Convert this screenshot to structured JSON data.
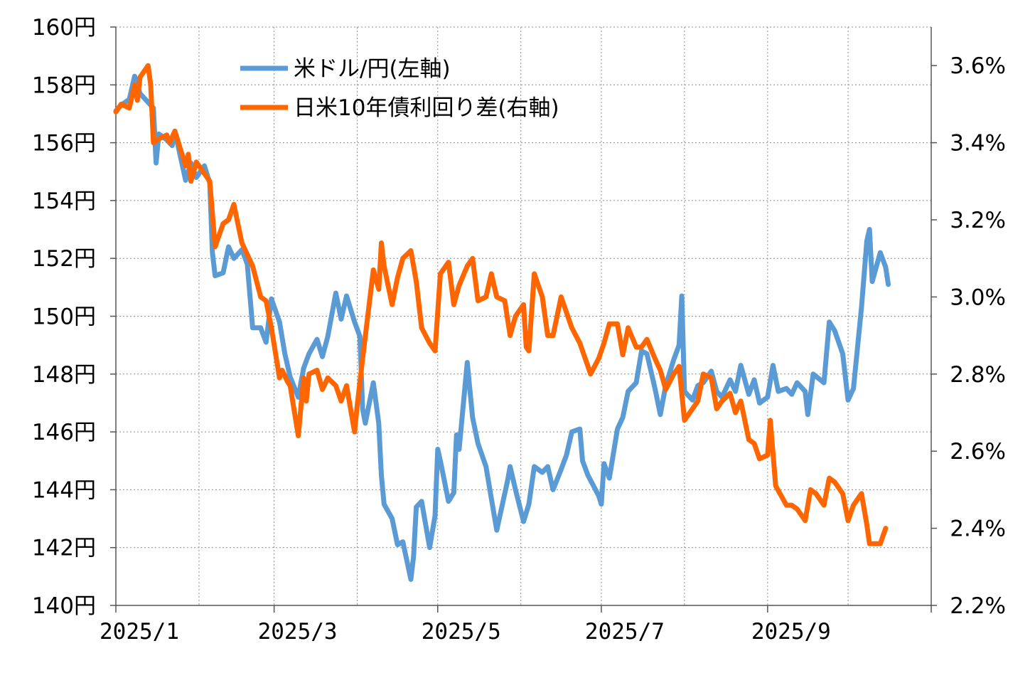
{
  "chart_data": {
    "type": "line",
    "title": "",
    "xlabel": "",
    "ylabel_left": "",
    "ylabel_right": "",
    "x_ticks": [
      "2025/1",
      "2025/3",
      "2025/5",
      "2025/7",
      "2025/9"
    ],
    "x_range": [
      "2025-01-01",
      "2025-11-01"
    ],
    "y_left": {
      "min": 140,
      "max": 160,
      "step": 2,
      "unit": "円",
      "ticks": [
        "140円",
        "142円",
        "144円",
        "146円",
        "148円",
        "150円",
        "152円",
        "154円",
        "156円",
        "158円",
        "160円"
      ]
    },
    "y_right": {
      "min": 2.2,
      "max": 3.7,
      "step": 0.2,
      "unit": "%",
      "ticks": [
        "2.2%",
        "2.4%",
        "2.6%",
        "2.8%",
        "3.0%",
        "3.2%",
        "3.4%",
        "3.6%"
      ]
    },
    "grid": true,
    "legend_position": "top-left",
    "series": [
      {
        "name": "米ドル/円(左軸)",
        "axis": "left",
        "color": "#5b9bd5",
        "points": [
          [
            "2025-01-01",
            157.1
          ],
          [
            "2025-01-03",
            157.3
          ],
          [
            "2025-01-06",
            157.5
          ],
          [
            "2025-01-08",
            158.3
          ],
          [
            "2025-01-10",
            157.7
          ],
          [
            "2025-01-13",
            157.4
          ],
          [
            "2025-01-15",
            157.2
          ],
          [
            "2025-01-16",
            155.3
          ],
          [
            "2025-01-17",
            156.3
          ],
          [
            "2025-01-20",
            156.1
          ],
          [
            "2025-01-22",
            155.9
          ],
          [
            "2025-01-23",
            156.4
          ],
          [
            "2025-01-27",
            154.7
          ],
          [
            "2025-01-29",
            155.3
          ],
          [
            "2025-01-31",
            154.8
          ],
          [
            "2025-02-03",
            155.2
          ],
          [
            "2025-02-05",
            154.6
          ],
          [
            "2025-02-06",
            152.2
          ],
          [
            "2025-02-07",
            151.4
          ],
          [
            "2025-02-10",
            151.5
          ],
          [
            "2025-02-12",
            152.4
          ],
          [
            "2025-02-14",
            152.0
          ],
          [
            "2025-02-17",
            152.3
          ],
          [
            "2025-02-19",
            151.8
          ],
          [
            "2025-02-21",
            149.6
          ],
          [
            "2025-02-24",
            149.6
          ],
          [
            "2025-02-26",
            149.1
          ],
          [
            "2025-02-28",
            150.6
          ],
          [
            "2025-03-03",
            149.8
          ],
          [
            "2025-03-05",
            148.7
          ],
          [
            "2025-03-07",
            147.9
          ],
          [
            "2025-03-10",
            147.2
          ],
          [
            "2025-03-12",
            148.2
          ],
          [
            "2025-03-14",
            148.7
          ],
          [
            "2025-03-17",
            149.2
          ],
          [
            "2025-03-19",
            148.6
          ],
          [
            "2025-03-21",
            149.3
          ],
          [
            "2025-03-24",
            150.8
          ],
          [
            "2025-03-26",
            149.9
          ],
          [
            "2025-03-28",
            150.7
          ],
          [
            "2025-03-31",
            149.8
          ],
          [
            "2025-04-02",
            149.3
          ],
          [
            "2025-04-03",
            146.8
          ],
          [
            "2025-04-04",
            146.3
          ],
          [
            "2025-04-07",
            147.7
          ],
          [
            "2025-04-09",
            146.3
          ],
          [
            "2025-04-10",
            144.5
          ],
          [
            "2025-04-11",
            143.5
          ],
          [
            "2025-04-14",
            143.0
          ],
          [
            "2025-04-16",
            142.1
          ],
          [
            "2025-04-18",
            142.2
          ],
          [
            "2025-04-21",
            140.9
          ],
          [
            "2025-04-22",
            141.7
          ],
          [
            "2025-04-23",
            143.4
          ],
          [
            "2025-04-25",
            143.6
          ],
          [
            "2025-04-28",
            142.0
          ],
          [
            "2025-04-30",
            143.1
          ],
          [
            "2025-05-01",
            145.4
          ],
          [
            "2025-05-02",
            145.0
          ],
          [
            "2025-05-05",
            143.6
          ],
          [
            "2025-05-07",
            143.9
          ],
          [
            "2025-05-08",
            145.9
          ],
          [
            "2025-05-09",
            145.4
          ],
          [
            "2025-05-12",
            148.4
          ],
          [
            "2025-05-14",
            146.5
          ],
          [
            "2025-05-16",
            145.6
          ],
          [
            "2025-05-19",
            144.8
          ],
          [
            "2025-05-21",
            143.7
          ],
          [
            "2025-05-23",
            142.6
          ],
          [
            "2025-05-27",
            144.3
          ],
          [
            "2025-05-28",
            144.8
          ],
          [
            "2025-05-30",
            144.0
          ],
          [
            "2025-06-02",
            142.9
          ],
          [
            "2025-06-04",
            143.5
          ],
          [
            "2025-06-06",
            144.8
          ],
          [
            "2025-06-09",
            144.6
          ],
          [
            "2025-06-11",
            144.8
          ],
          [
            "2025-06-13",
            144.0
          ],
          [
            "2025-06-16",
            144.7
          ],
          [
            "2025-06-18",
            145.2
          ],
          [
            "2025-06-20",
            146.0
          ],
          [
            "2025-06-23",
            146.1
          ],
          [
            "2025-06-24",
            145.0
          ],
          [
            "2025-06-26",
            144.5
          ],
          [
            "2025-06-30",
            143.8
          ],
          [
            "2025-07-01",
            143.5
          ],
          [
            "2025-07-02",
            144.9
          ],
          [
            "2025-07-04",
            144.4
          ],
          [
            "2025-07-07",
            146.1
          ],
          [
            "2025-07-09",
            146.5
          ],
          [
            "2025-07-11",
            147.4
          ],
          [
            "2025-07-14",
            147.7
          ],
          [
            "2025-07-16",
            148.8
          ],
          [
            "2025-07-18",
            148.7
          ],
          [
            "2025-07-21",
            147.5
          ],
          [
            "2025-07-23",
            146.6
          ],
          [
            "2025-07-25",
            147.6
          ],
          [
            "2025-07-28",
            148.5
          ],
          [
            "2025-07-30",
            149.0
          ],
          [
            "2025-07-31",
            150.7
          ],
          [
            "2025-08-01",
            147.4
          ],
          [
            "2025-08-04",
            147.1
          ],
          [
            "2025-08-06",
            147.6
          ],
          [
            "2025-08-08",
            147.7
          ],
          [
            "2025-08-11",
            148.1
          ],
          [
            "2025-08-13",
            147.4
          ],
          [
            "2025-08-15",
            147.2
          ],
          [
            "2025-08-18",
            147.8
          ],
          [
            "2025-08-20",
            147.4
          ],
          [
            "2025-08-22",
            148.3
          ],
          [
            "2025-08-25",
            147.3
          ],
          [
            "2025-08-27",
            147.8
          ],
          [
            "2025-08-29",
            147.0
          ],
          [
            "2025-09-01",
            147.2
          ],
          [
            "2025-09-03",
            148.3
          ],
          [
            "2025-09-05",
            147.4
          ],
          [
            "2025-09-08",
            147.5
          ],
          [
            "2025-09-10",
            147.3
          ],
          [
            "2025-09-12",
            147.7
          ],
          [
            "2025-09-15",
            147.4
          ],
          [
            "2025-09-16",
            146.6
          ],
          [
            "2025-09-18",
            148.0
          ],
          [
            "2025-09-22",
            147.7
          ],
          [
            "2025-09-24",
            149.8
          ],
          [
            "2025-09-26",
            149.5
          ],
          [
            "2025-09-29",
            148.7
          ],
          [
            "2025-10-01",
            147.1
          ],
          [
            "2025-10-03",
            147.5
          ],
          [
            "2025-10-06",
            150.3
          ],
          [
            "2025-10-08",
            152.6
          ],
          [
            "2025-10-09",
            153.0
          ],
          [
            "2025-10-10",
            151.2
          ],
          [
            "2025-10-13",
            152.2
          ],
          [
            "2025-10-15",
            151.7
          ],
          [
            "2025-10-16",
            151.1
          ]
        ]
      },
      {
        "name": "日米10年債利回り差(右軸)",
        "axis": "right",
        "color": "#ff6600",
        "points": [
          [
            "2025-01-01",
            3.48
          ],
          [
            "2025-01-03",
            3.5
          ],
          [
            "2025-01-06",
            3.49
          ],
          [
            "2025-01-08",
            3.55
          ],
          [
            "2025-01-09",
            3.51
          ],
          [
            "2025-01-10",
            3.57
          ],
          [
            "2025-01-13",
            3.6
          ],
          [
            "2025-01-14",
            3.55
          ],
          [
            "2025-01-15",
            3.4
          ],
          [
            "2025-01-17",
            3.41
          ],
          [
            "2025-01-20",
            3.42
          ],
          [
            "2025-01-21",
            3.4
          ],
          [
            "2025-01-23",
            3.43
          ],
          [
            "2025-01-27",
            3.34
          ],
          [
            "2025-01-28",
            3.37
          ],
          [
            "2025-01-29",
            3.3
          ],
          [
            "2025-01-31",
            3.35
          ],
          [
            "2025-02-03",
            3.32
          ],
          [
            "2025-02-05",
            3.3
          ],
          [
            "2025-02-07",
            3.13
          ],
          [
            "2025-02-10",
            3.19
          ],
          [
            "2025-02-12",
            3.2
          ],
          [
            "2025-02-14",
            3.24
          ],
          [
            "2025-02-17",
            3.14
          ],
          [
            "2025-02-19",
            3.11
          ],
          [
            "2025-02-21",
            3.08
          ],
          [
            "2025-02-24",
            3.0
          ],
          [
            "2025-02-26",
            2.99
          ],
          [
            "2025-02-28",
            2.92
          ],
          [
            "2025-03-03",
            2.79
          ],
          [
            "2025-03-04",
            2.81
          ],
          [
            "2025-03-06",
            2.78
          ],
          [
            "2025-03-07",
            2.77
          ],
          [
            "2025-03-10",
            2.64
          ],
          [
            "2025-03-12",
            2.79
          ],
          [
            "2025-03-13",
            2.73
          ],
          [
            "2025-03-14",
            2.8
          ],
          [
            "2025-03-17",
            2.81
          ],
          [
            "2025-03-19",
            2.76
          ],
          [
            "2025-03-21",
            2.79
          ],
          [
            "2025-03-24",
            2.77
          ],
          [
            "2025-03-26",
            2.73
          ],
          [
            "2025-03-28",
            2.77
          ],
          [
            "2025-03-31",
            2.65
          ],
          [
            "2025-04-01",
            2.72
          ],
          [
            "2025-04-03",
            2.84
          ],
          [
            "2025-04-07",
            3.07
          ],
          [
            "2025-04-09",
            3.02
          ],
          [
            "2025-04-10",
            3.14
          ],
          [
            "2025-04-11",
            3.08
          ],
          [
            "2025-04-14",
            2.98
          ],
          [
            "2025-04-16",
            3.05
          ],
          [
            "2025-04-18",
            3.1
          ],
          [
            "2025-04-21",
            3.12
          ],
          [
            "2025-04-23",
            3.04
          ],
          [
            "2025-04-25",
            2.92
          ],
          [
            "2025-04-28",
            2.88
          ],
          [
            "2025-04-30",
            2.86
          ],
          [
            "2025-05-02",
            3.06
          ],
          [
            "2025-05-05",
            3.09
          ],
          [
            "2025-05-07",
            2.98
          ],
          [
            "2025-05-09",
            3.03
          ],
          [
            "2025-05-12",
            3.08
          ],
          [
            "2025-05-14",
            3.1
          ],
          [
            "2025-05-16",
            2.99
          ],
          [
            "2025-05-19",
            3.0
          ],
          [
            "2025-05-21",
            3.06
          ],
          [
            "2025-05-23",
            3.0
          ],
          [
            "2025-05-26",
            2.99
          ],
          [
            "2025-05-28",
            2.9
          ],
          [
            "2025-05-30",
            2.95
          ],
          [
            "2025-06-02",
            2.98
          ],
          [
            "2025-06-03",
            2.87
          ],
          [
            "2025-06-04",
            2.86
          ],
          [
            "2025-06-06",
            3.06
          ],
          [
            "2025-06-09",
            3.0
          ],
          [
            "2025-06-11",
            2.9
          ],
          [
            "2025-06-13",
            2.9
          ],
          [
            "2025-06-16",
            3.0
          ],
          [
            "2025-06-18",
            2.96
          ],
          [
            "2025-06-20",
            2.92
          ],
          [
            "2025-06-23",
            2.88
          ],
          [
            "2025-06-25",
            2.84
          ],
          [
            "2025-06-27",
            2.8
          ],
          [
            "2025-06-30",
            2.84
          ],
          [
            "2025-07-02",
            2.88
          ],
          [
            "2025-07-04",
            2.93
          ],
          [
            "2025-07-07",
            2.93
          ],
          [
            "2025-07-09",
            2.85
          ],
          [
            "2025-07-11",
            2.92
          ],
          [
            "2025-07-14",
            2.87
          ],
          [
            "2025-07-16",
            2.87
          ],
          [
            "2025-07-18",
            2.89
          ],
          [
            "2025-07-21",
            2.84
          ],
          [
            "2025-07-23",
            2.81
          ],
          [
            "2025-07-25",
            2.76
          ],
          [
            "2025-07-28",
            2.8
          ],
          [
            "2025-07-30",
            2.82
          ],
          [
            "2025-08-01",
            2.68
          ],
          [
            "2025-08-04",
            2.71
          ],
          [
            "2025-08-06",
            2.73
          ],
          [
            "2025-08-08",
            2.8
          ],
          [
            "2025-08-11",
            2.79
          ],
          [
            "2025-08-13",
            2.71
          ],
          [
            "2025-08-15",
            2.73
          ],
          [
            "2025-08-18",
            2.75
          ],
          [
            "2025-08-20",
            2.7
          ],
          [
            "2025-08-22",
            2.73
          ],
          [
            "2025-08-25",
            2.63
          ],
          [
            "2025-08-27",
            2.62
          ],
          [
            "2025-08-29",
            2.58
          ],
          [
            "2025-09-01",
            2.59
          ],
          [
            "2025-09-02",
            2.68
          ],
          [
            "2025-09-04",
            2.51
          ],
          [
            "2025-09-08",
            2.46
          ],
          [
            "2025-09-10",
            2.46
          ],
          [
            "2025-09-12",
            2.45
          ],
          [
            "2025-09-15",
            2.42
          ],
          [
            "2025-09-17",
            2.5
          ],
          [
            "2025-09-19",
            2.49
          ],
          [
            "2025-09-22",
            2.46
          ],
          [
            "2025-09-24",
            2.53
          ],
          [
            "2025-09-26",
            2.52
          ],
          [
            "2025-09-29",
            2.49
          ],
          [
            "2025-10-01",
            2.42
          ],
          [
            "2025-10-03",
            2.46
          ],
          [
            "2025-10-06",
            2.49
          ],
          [
            "2025-10-08",
            2.41
          ],
          [
            "2025-10-09",
            2.36
          ],
          [
            "2025-10-13",
            2.36
          ],
          [
            "2025-10-15",
            2.4
          ]
        ]
      }
    ]
  }
}
